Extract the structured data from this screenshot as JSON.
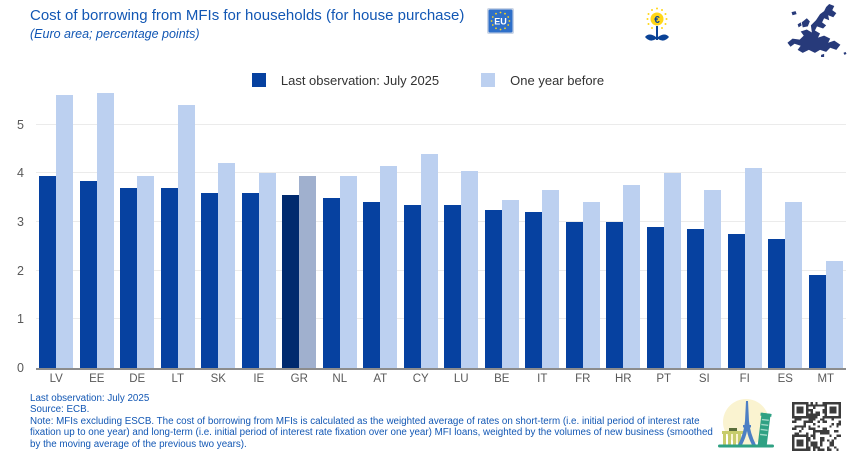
{
  "header": {
    "title": "Cost of borrowing from MFIs for households (for house purchase)",
    "subtitle": "(Euro area; percentage points)",
    "eu_flag_text": "EU",
    "euro_symbol": "€"
  },
  "legend": [
    {
      "label": "Last observation: July 2025",
      "color": "#0641A0"
    },
    {
      "label": "One year before",
      "color": "#BCD0F0"
    }
  ],
  "chart_data": {
    "type": "bar",
    "title": "Cost of borrowing from MFIs for households (for house purchase)",
    "subtitle": "(Euro area; percentage points)",
    "categories": [
      "LV",
      "EE",
      "DE",
      "LT",
      "SK",
      "IE",
      "GR",
      "NL",
      "AT",
      "CY",
      "LU",
      "BE",
      "IT",
      "FR",
      "HR",
      "PT",
      "SI",
      "FI",
      "ES",
      "MT"
    ],
    "series": [
      {
        "name": "Last observation: July 2025",
        "color": "#0641A0",
        "values": [
          3.95,
          3.85,
          3.7,
          3.7,
          3.6,
          3.6,
          3.55,
          3.5,
          3.4,
          3.35,
          3.35,
          3.25,
          3.2,
          3.0,
          3.0,
          2.9,
          2.85,
          2.75,
          2.65,
          1.9
        ]
      },
      {
        "name": "One year before",
        "color": "#BCD0F0",
        "values": [
          5.6,
          5.65,
          3.95,
          5.4,
          4.2,
          4.0,
          3.95,
          3.95,
          4.15,
          4.4,
          4.05,
          3.45,
          3.65,
          3.4,
          3.75,
          4.0,
          3.65,
          4.1,
          3.4,
          2.2
        ]
      }
    ],
    "highlight": {
      "category": "GR",
      "colors": [
        "#002A6E",
        "#A0B0CE"
      ]
    },
    "ylabel": "",
    "xlabel": "",
    "ylim": [
      0,
      5.75
    ],
    "yticks": [
      0,
      1,
      2,
      3,
      4,
      5
    ],
    "grid": true,
    "legend_position": "top",
    "axis_color": "#595959",
    "gridline_color": "#ebebeb",
    "baseline_color": "#8c8c8c"
  },
  "footer": {
    "line1": "Last observation: July 2025",
    "line2": "Source: ECB.",
    "note": "Note: MFIs excluding ESCB. The cost of borrowing from MFIs is calculated as the weighted average of rates on short-term (i.e. initial period of interest rate fixation up to one year) and long-term (i.e. initial period of interest rate fixation over one year) MFI loans, weighted by the volumes of new business (smoothed by the moving average of the previous two years)."
  }
}
